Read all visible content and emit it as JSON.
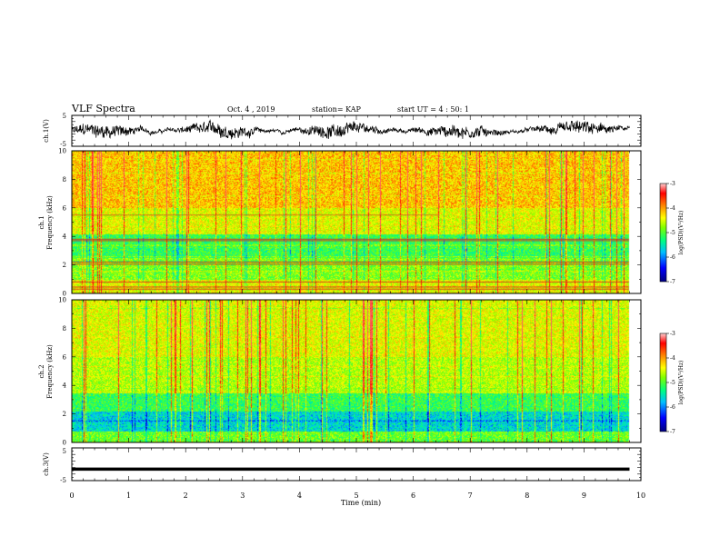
{
  "header": {
    "title": "VLF Spectra",
    "date": "Oct. 4 , 2019",
    "station": "station= KAP",
    "start_ut": "start UT =  4 : 50: 1"
  },
  "chart_data": [
    {
      "type": "line",
      "panel": "ch1-waveform",
      "ylabel": "ch.1(V)",
      "ylim": [
        -5,
        5
      ],
      "yticks": [
        "5",
        "-5"
      ],
      "xlim": [
        0,
        10
      ],
      "series": [
        {
          "color": "#000000",
          "description_values": "noisy waveform centered near 0 V, amplitude about ±3 V, from 0 to 9.8 min"
        }
      ]
    },
    {
      "type": "heatmap",
      "panel": "ch1-spectrogram",
      "ylabel_line1": "ch.1",
      "ylabel_line2": "Frequency (kHz)",
      "ylim": [
        0,
        10
      ],
      "yticks": [
        "0",
        "2",
        "4",
        "6",
        "8",
        "10"
      ],
      "xlim": [
        0,
        10
      ],
      "data_xmax": 9.8,
      "colorbar": {
        "label": "log(PSD)(V²/Hz)",
        "range": [
          -7,
          -3
        ],
        "ticks": [
          "-3",
          "-4",
          "-5",
          "-6",
          "-7"
        ]
      }
    },
    {
      "type": "heatmap",
      "panel": "ch2-spectrogram",
      "ylabel_line1": "ch.2",
      "ylabel_line2": "Frequency (kHz)",
      "ylim": [
        0,
        10
      ],
      "yticks": [
        "0",
        "2",
        "4",
        "6",
        "8",
        "10"
      ],
      "xlim": [
        0,
        10
      ],
      "data_xmax": 9.8,
      "colorbar": {
        "label": "log(PSD)(V²/Hz)",
        "range": [
          -7,
          -3
        ],
        "ticks": [
          "-3",
          "-4",
          "-5",
          "-6",
          "-7"
        ]
      }
    },
    {
      "type": "line",
      "panel": "ch3-waveform",
      "ylabel": "ch.3(V)",
      "ylim": [
        -5,
        5
      ],
      "yticks": [
        "5",
        "-5"
      ],
      "xlim": [
        0,
        10
      ],
      "series": [
        {
          "color": "#000000",
          "constant_value": -1.5
        }
      ]
    }
  ],
  "xaxis": {
    "label": "Time (min)",
    "ticks": [
      "0",
      "1",
      "2",
      "3",
      "4",
      "5",
      "6",
      "7",
      "8",
      "9",
      "10"
    ]
  },
  "colors": {
    "colormap": [
      "#00007f",
      "#0000ff",
      "#00bfff",
      "#00ff7f",
      "#7fff00",
      "#ffff00",
      "#ff7f00",
      "#ff0000",
      "#ff6060"
    ]
  }
}
